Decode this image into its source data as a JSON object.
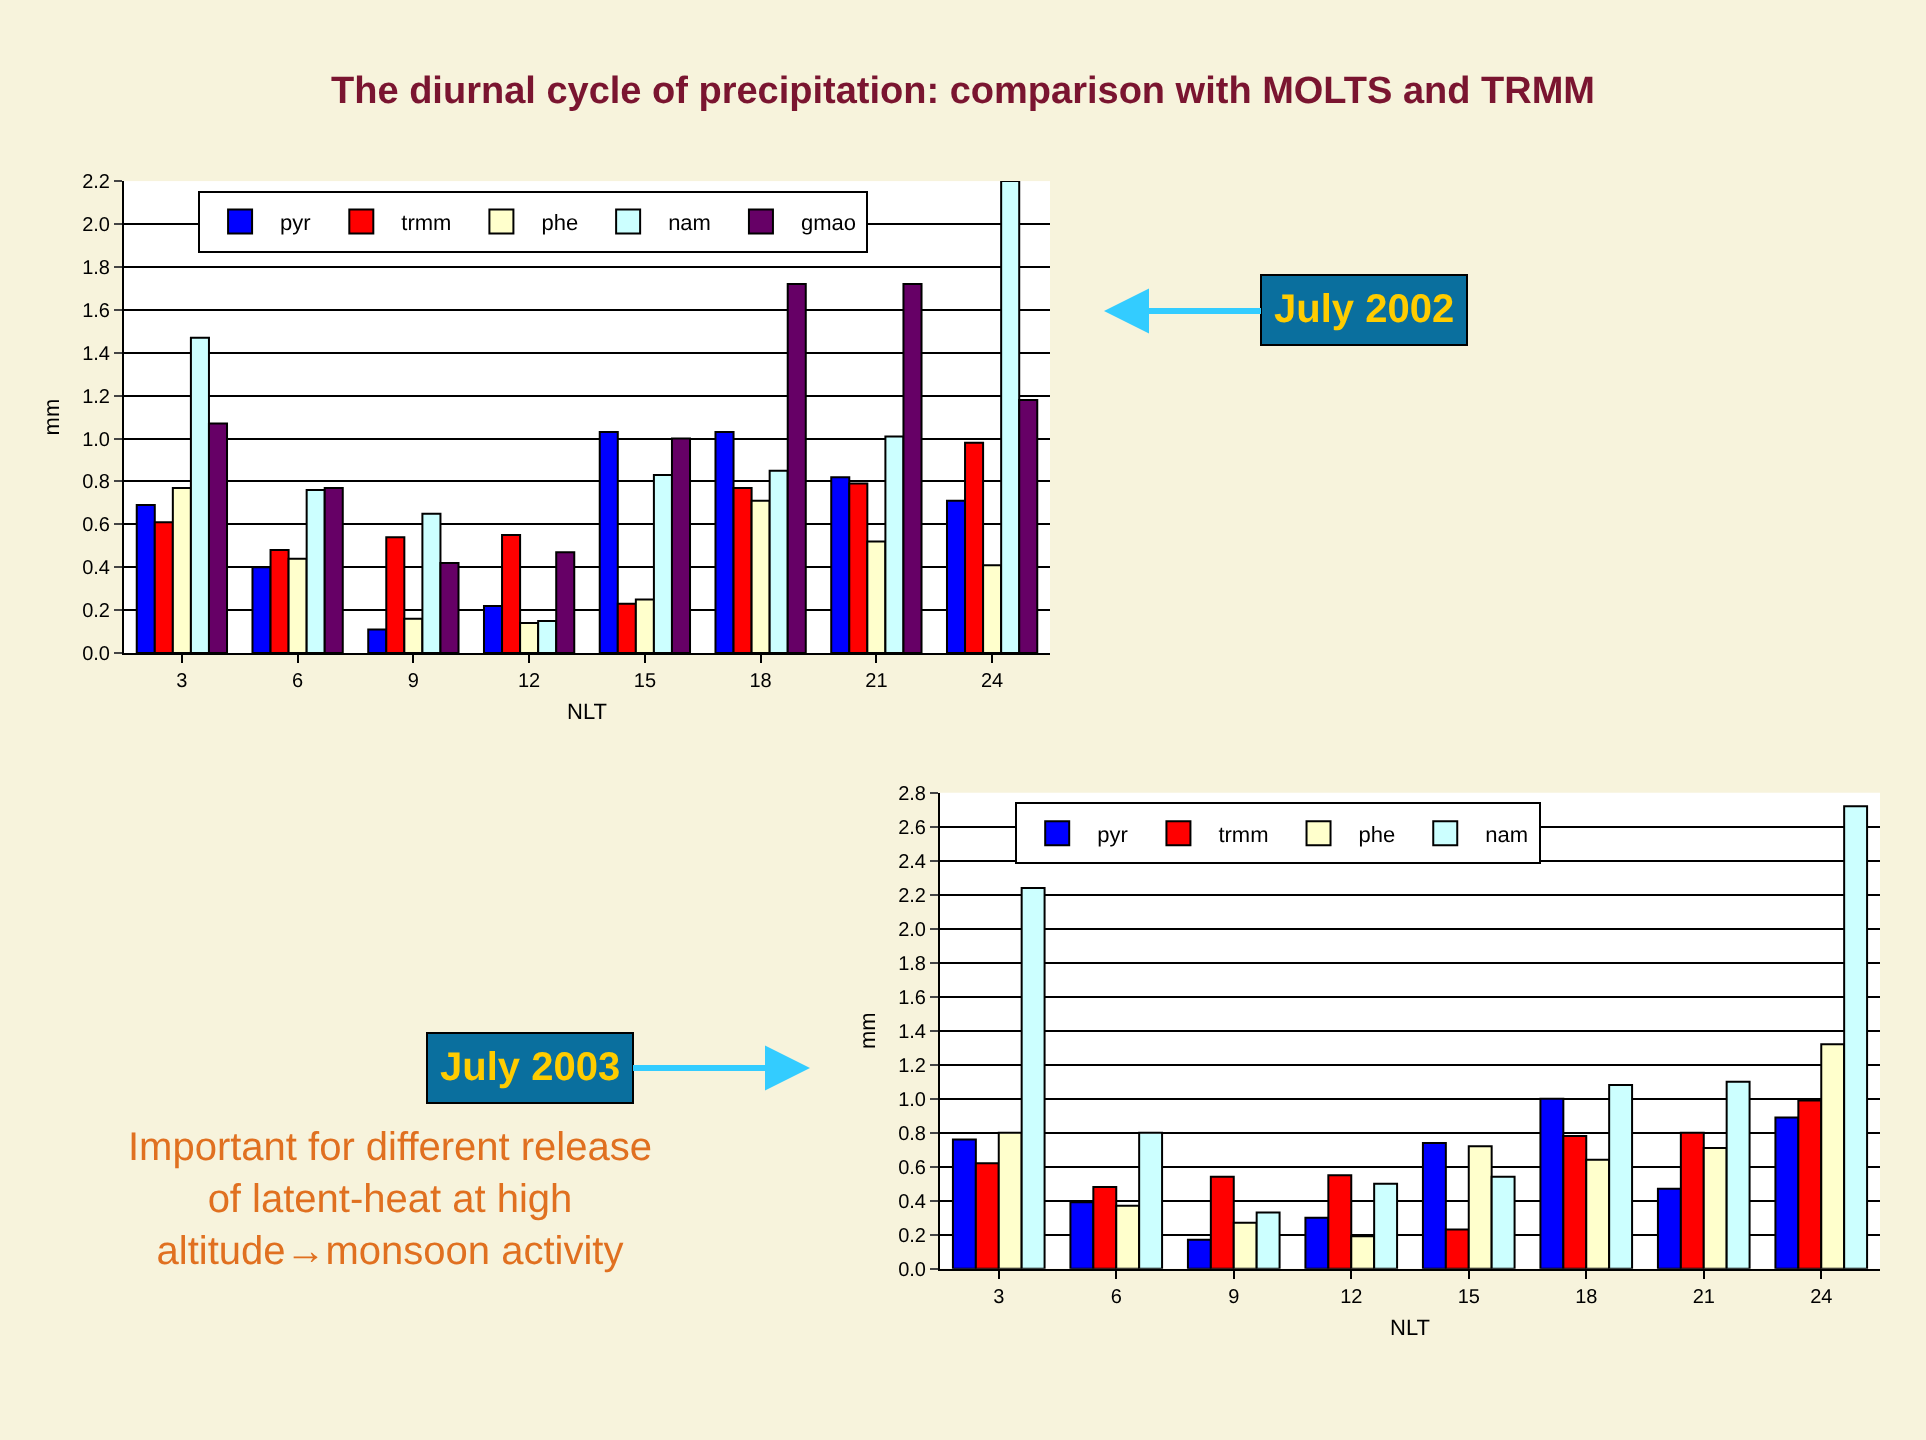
{
  "chart_data": [
    {
      "type": "bar",
      "title": "The diurnal cycle of precipitation: comparison with MOLTS and TRMM",
      "xlabel": "NLT",
      "ylabel": "mm",
      "categories": [
        "3",
        "6",
        "9",
        "12",
        "15",
        "18",
        "21",
        "24"
      ],
      "series": [
        {
          "name": "pyr",
          "color": "#0000ff",
          "values": [
            0.69,
            0.4,
            0.11,
            0.22,
            1.03,
            1.03,
            0.82,
            0.71
          ]
        },
        {
          "name": "trmm",
          "color": "#ff0000",
          "values": [
            0.61,
            0.48,
            0.54,
            0.55,
            0.23,
            0.77,
            0.79,
            0.98
          ]
        },
        {
          "name": "phe",
          "color": "#ffffcc",
          "values": [
            0.77,
            0.44,
            0.16,
            0.14,
            0.25,
            0.71,
            0.52,
            0.41
          ]
        },
        {
          "name": "nam",
          "color": "#ccffff",
          "values": [
            1.47,
            0.76,
            0.65,
            0.15,
            0.83,
            0.85,
            1.01,
            2.2
          ]
        },
        {
          "name": "gmao",
          "color": "#660066",
          "values": [
            1.07,
            0.77,
            0.42,
            0.47,
            1.0,
            1.72,
            1.72,
            1.18
          ]
        }
      ],
      "ylim": [
        0,
        2.2
      ],
      "yticks": [
        {
          "value": 0,
          "label": "0.0"
        },
        {
          "value": 0.2,
          "label": "0.2"
        },
        {
          "value": 0.4,
          "label": "0.4"
        },
        {
          "value": 0.6,
          "label": "0.6"
        },
        {
          "value": 0.8,
          "label": "0.8"
        },
        {
          "value": 1.0,
          "label": "1.0"
        },
        {
          "value": 1.2,
          "label": "1.2"
        },
        {
          "value": 1.4,
          "label": "1.4"
        },
        {
          "value": 1.6,
          "label": "1.6"
        },
        {
          "value": 1.8,
          "label": "1.8"
        },
        {
          "value": 2.0,
          "label": "2.0"
        },
        {
          "value": 2.2,
          "label": "2.2"
        }
      ],
      "grid": "y",
      "legend": "top left",
      "annotations": [
        "July 2002"
      ]
    },
    {
      "type": "bar",
      "xlabel": "NLT",
      "ylabel": "mm",
      "categories": [
        "3",
        "6",
        "9",
        "12",
        "15",
        "18",
        "21",
        "24"
      ],
      "series": [
        {
          "name": "pyr",
          "color": "#0000ff",
          "values": [
            0.76,
            0.39,
            0.17,
            0.3,
            0.74,
            1.0,
            0.47,
            0.89
          ]
        },
        {
          "name": "trmm",
          "color": "#ff0000",
          "values": [
            0.62,
            0.48,
            0.54,
            0.55,
            0.23,
            0.78,
            0.8,
            0.99
          ]
        },
        {
          "name": "phe",
          "color": "#ffffcc",
          "values": [
            0.8,
            0.37,
            0.27,
            0.19,
            0.72,
            0.64,
            0.71,
            1.32
          ]
        },
        {
          "name": "nam",
          "color": "#ccffff",
          "values": [
            2.24,
            0.8,
            0.33,
            0.5,
            0.54,
            1.08,
            1.1,
            2.72
          ]
        }
      ],
      "ylim": [
        0,
        2.8
      ],
      "yticks": [
        {
          "value": 0,
          "label": "0.0"
        },
        {
          "value": 0.2,
          "label": "0.2"
        },
        {
          "value": 0.4,
          "label": "0.4"
        },
        {
          "value": 0.6,
          "label": "0.6"
        },
        {
          "value": 0.8,
          "label": "0.8"
        },
        {
          "value": 1.0,
          "label": "1.0"
        },
        {
          "value": 1.2,
          "label": "1.2"
        },
        {
          "value": 1.4,
          "label": "1.4"
        },
        {
          "value": 1.6,
          "label": "1.6"
        },
        {
          "value": 1.8,
          "label": "1.8"
        },
        {
          "value": 2.0,
          "label": "2.0"
        },
        {
          "value": 2.2,
          "label": "2.2"
        },
        {
          "value": 2.4,
          "label": "2.4"
        },
        {
          "value": 2.6,
          "label": "2.6"
        },
        {
          "value": 2.8,
          "label": "2.8"
        }
      ],
      "grid": "y",
      "legend": "top left",
      "annotations": [
        "July 2003",
        "Important for different release\nof latent-heat at high\naltitude→monsoon activity"
      ]
    }
  ]
}
